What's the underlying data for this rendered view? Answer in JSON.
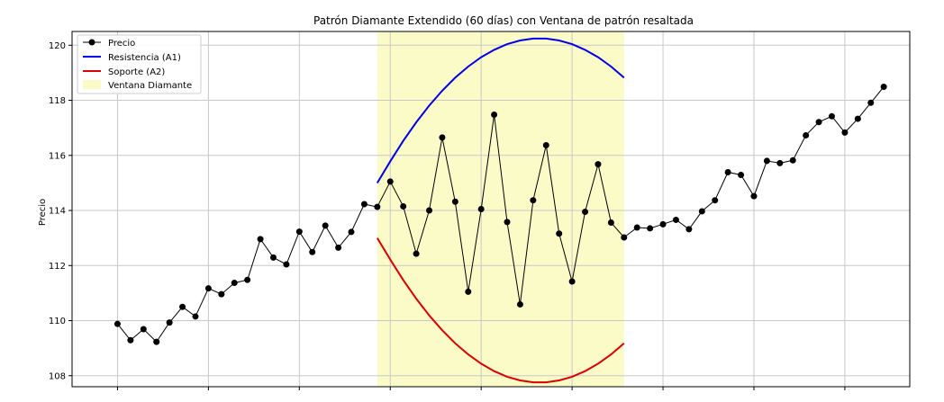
{
  "chart_data": {
    "type": "line",
    "title": "Patrón Diamante Extendido (60 días) con Ventana de patrón resaltada",
    "xlabel": "",
    "ylabel": "Precio",
    "ylim": [
      107.6,
      120.5
    ],
    "xlim": [
      -3.5,
      61
    ],
    "yticks": [
      108,
      110,
      112,
      114,
      116,
      118,
      120
    ],
    "grid": true,
    "legend_position": "top-left",
    "pattern_window": {
      "start": 20,
      "end": 39,
      "name": "Ventana Diamante",
      "color": "#fbfbc8"
    },
    "series": [
      {
        "name": "Precio",
        "color": "#000000",
        "marker": "circle",
        "x": [
          0,
          1,
          2,
          3,
          4,
          5,
          6,
          7,
          8,
          9,
          10,
          11,
          12,
          13,
          14,
          15,
          16,
          17,
          18,
          19,
          20,
          21,
          22,
          23,
          24,
          25,
          26,
          27,
          28,
          29,
          30,
          31,
          32,
          33,
          34,
          35,
          36,
          37,
          38,
          39,
          40,
          41,
          42,
          43,
          44,
          45,
          46,
          47,
          48,
          49,
          50,
          51,
          52,
          53,
          54,
          55,
          56,
          57,
          58,
          59
        ],
        "values": [
          109.88,
          109.29,
          109.69,
          109.23,
          109.93,
          110.5,
          110.15,
          111.17,
          110.96,
          111.37,
          111.48,
          112.96,
          112.29,
          112.04,
          113.23,
          112.49,
          113.45,
          112.65,
          113.22,
          114.23,
          114.13,
          115.05,
          114.15,
          112.43,
          114.0,
          116.65,
          114.32,
          111.05,
          114.05,
          117.48,
          113.58,
          110.59,
          114.37,
          116.37,
          113.16,
          111.42,
          113.95,
          115.68,
          113.56,
          113.02,
          113.38,
          113.35,
          113.5,
          113.66,
          113.32,
          113.97,
          114.37,
          115.39,
          115.29,
          114.52,
          115.8,
          115.72,
          115.82,
          116.73,
          117.21,
          117.42,
          116.83,
          117.33,
          117.91,
          118.49
        ]
      },
      {
        "name": "Resistencia (A1)",
        "color": "#0000ee",
        "x": [
          20,
          21,
          22,
          23,
          24,
          25,
          26,
          27,
          28,
          29,
          30,
          31,
          32,
          33,
          34,
          35,
          36,
          37,
          38,
          39
        ],
        "values": [
          114.997,
          115.787,
          116.528,
          117.202,
          117.809,
          118.349,
          118.822,
          119.227,
          119.565,
          119.835,
          120.038,
          120.173,
          120.241,
          120.241,
          120.173,
          120.038,
          119.835,
          119.565,
          119.227,
          118.822
        ]
      },
      {
        "name": "Soporte (A2)",
        "color": "#dd0000",
        "x": [
          20,
          21,
          22,
          23,
          24,
          25,
          26,
          27,
          28,
          29,
          30,
          31,
          32,
          33,
          34,
          35,
          36,
          37,
          38,
          39
        ],
        "values": [
          113.003,
          112.213,
          111.472,
          110.798,
          110.191,
          109.651,
          109.178,
          108.773,
          108.435,
          108.165,
          107.962,
          107.827,
          107.759,
          107.759,
          107.827,
          107.962,
          108.165,
          108.435,
          108.773,
          109.178
        ]
      }
    ]
  }
}
